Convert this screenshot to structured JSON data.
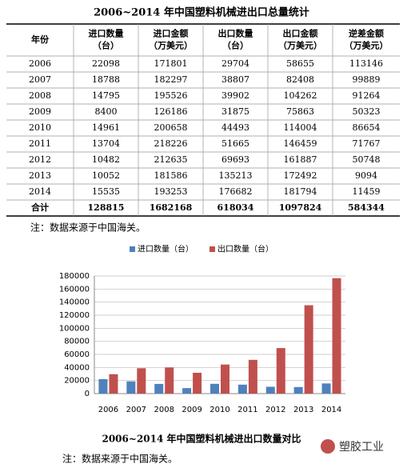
{
  "table": {
    "title": "2006~2014 年中国塑料机械进出口总量统计",
    "header": [
      [
        "年份"
      ],
      [
        "进口数量",
        "（台）"
      ],
      [
        "进口金额",
        "（万美元）"
      ],
      [
        "出口数量",
        "（台）"
      ],
      [
        "出口金额",
        "（万美元）"
      ],
      [
        "逆差金额",
        "（万美元）"
      ]
    ],
    "rows": [
      [
        "2006",
        22098,
        171801,
        29704,
        58655,
        113146
      ],
      [
        "2007",
        18788,
        182297,
        38807,
        82408,
        99889
      ],
      [
        "2008",
        14795,
        195526,
        39902,
        104262,
        91264
      ],
      [
        "2009",
        8400,
        126186,
        31875,
        75863,
        50323
      ],
      [
        "2010",
        14961,
        200658,
        44493,
        114004,
        86654
      ],
      [
        "2011",
        13704,
        218226,
        51665,
        146459,
        71767
      ],
      [
        "2012",
        10482,
        212635,
        69693,
        161887,
        50748
      ],
      [
        "2013",
        10052,
        181586,
        135213,
        172492,
        9094
      ],
      [
        "2014",
        15535,
        193253,
        176682,
        181794,
        11459
      ]
    ],
    "total": [
      "合计",
      128815,
      1682168,
      618034,
      1097824,
      584344
    ],
    "note": "注：数据来源于中国海关。"
  },
  "chart_data": {
    "type": "bar",
    "title": "2006~2014 年中国塑料机械进出口数量对比",
    "categories": [
      "2006",
      "2007",
      "2008",
      "2009",
      "2010",
      "2011",
      "2012",
      "2013",
      "2014"
    ],
    "series": [
      {
        "name": "进口数量（台）",
        "color": "#4f81bd",
        "values": [
          22098,
          18788,
          14795,
          8400,
          14961,
          13704,
          10482,
          10052,
          15535
        ]
      },
      {
        "name": "出口数量（台）",
        "color": "#c0504d",
        "values": [
          29704,
          38807,
          39902,
          31875,
          44493,
          51665,
          69693,
          135213,
          176682
        ]
      }
    ],
    "ylim": [
      0,
      180000
    ],
    "yticks": [
      0,
      20000,
      40000,
      60000,
      80000,
      100000,
      120000,
      140000,
      160000,
      180000
    ],
    "grid": true,
    "legend": "top"
  },
  "chart_note": "注：数据来源于中国海关。",
  "watermark": "塑胶工业"
}
